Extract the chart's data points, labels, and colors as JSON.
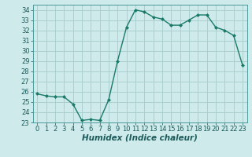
{
  "x": [
    0,
    1,
    2,
    3,
    4,
    5,
    6,
    7,
    8,
    9,
    10,
    11,
    12,
    13,
    14,
    15,
    16,
    17,
    18,
    19,
    20,
    21,
    22,
    23
  ],
  "y": [
    25.8,
    25.6,
    25.5,
    25.5,
    24.8,
    23.2,
    23.3,
    23.2,
    25.2,
    29.0,
    32.3,
    34.0,
    33.8,
    33.3,
    33.1,
    32.5,
    32.5,
    33.0,
    33.5,
    33.5,
    32.3,
    32.0,
    31.5,
    28.6
  ],
  "line_color": "#1a7a6a",
  "marker": "D",
  "marker_size": 2,
  "bg_color": "#ceeaea",
  "grid_color": "#aacfcf",
  "xlabel": "Humidex (Indice chaleur)",
  "ylim": [
    23,
    34.5
  ],
  "xlim": [
    -0.5,
    23.5
  ],
  "yticks": [
    23,
    24,
    25,
    26,
    27,
    28,
    29,
    30,
    31,
    32,
    33,
    34
  ],
  "xticks": [
    0,
    1,
    2,
    3,
    4,
    5,
    6,
    7,
    8,
    9,
    10,
    11,
    12,
    13,
    14,
    15,
    16,
    17,
    18,
    19,
    20,
    21,
    22,
    23
  ],
  "xlabel_fontsize": 7.5,
  "tick_fontsize": 6,
  "line_width": 1.0
}
